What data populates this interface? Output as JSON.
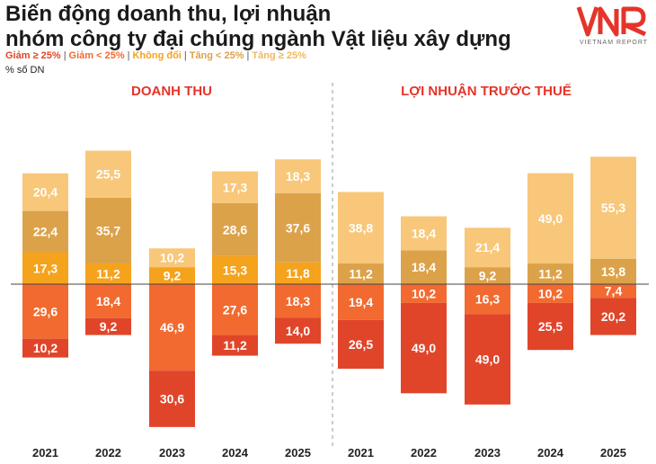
{
  "header": {
    "title_line1": "Biến động doanh thu, lợi nhuận",
    "title_line2": "nhóm công ty đại chúng ngành Vật liệu xây dựng",
    "unit": "% số DN"
  },
  "logo": {
    "mark": "VNR",
    "tagline": "VIETNAM REPORT"
  },
  "legend": [
    {
      "label": "Giảm ≥ 25%",
      "color": "#e0452a"
    },
    {
      "label": "Giảm < 25%",
      "color": "#f26a30"
    },
    {
      "label": "Không đổi",
      "color": "#f5a21c"
    },
    {
      "label": "Tăng < 25%",
      "color": "#dca24a"
    },
    {
      "label": "Tăng ≥ 25%",
      "color": "#f8c77a"
    }
  ],
  "colors": {
    "giam_ge_25": "#e0452a",
    "giam_lt_25": "#f26a30",
    "khong_doi": "#f5a21c",
    "tang_lt_25": "#dca24a",
    "tang_ge_25": "#f8c77a",
    "group_title": "#e5342a"
  },
  "chart_data": [
    {
      "type": "bar",
      "title": "DOANH THU",
      "categories": [
        "2021",
        "2022",
        "2023",
        "2024",
        "2025"
      ],
      "series": [
        {
          "name": "Giảm ≥ 25%",
          "values": [
            10.2,
            9.2,
            30.6,
            11.2,
            14.0
          ]
        },
        {
          "name": "Giảm < 25%",
          "values": [
            29.6,
            18.4,
            46.9,
            27.6,
            18.3
          ]
        },
        {
          "name": "Không đổi",
          "values": [
            17.3,
            11.2,
            9.2,
            15.3,
            11.8
          ]
        },
        {
          "name": "Tăng < 25%",
          "values": [
            22.4,
            35.7,
            0,
            28.6,
            37.6
          ]
        },
        {
          "name": "Tăng ≥ 25%",
          "values": [
            20.4,
            25.5,
            10.2,
            17.3,
            18.3
          ]
        }
      ]
    },
    {
      "type": "bar",
      "title": "LỢI NHUẬN TRƯỚC THUẾ",
      "categories": [
        "2021",
        "2022",
        "2023",
        "2024",
        "2025"
      ],
      "series": [
        {
          "name": "Giảm ≥ 25%",
          "values": [
            26.5,
            49.0,
            49.0,
            25.5,
            20.2
          ]
        },
        {
          "name": "Giảm < 25%",
          "values": [
            19.4,
            10.2,
            16.3,
            10.2,
            7.4
          ]
        },
        {
          "name": "Không đổi",
          "values": [
            0,
            0,
            0,
            0,
            0
          ]
        },
        {
          "name": "Tăng < 25%",
          "values": [
            11.2,
            18.4,
            9.2,
            11.2,
            13.8
          ]
        },
        {
          "name": "Tăng ≥ 25%",
          "values": [
            38.8,
            18.4,
            21.4,
            49.0,
            55.3
          ]
        }
      ]
    }
  ]
}
